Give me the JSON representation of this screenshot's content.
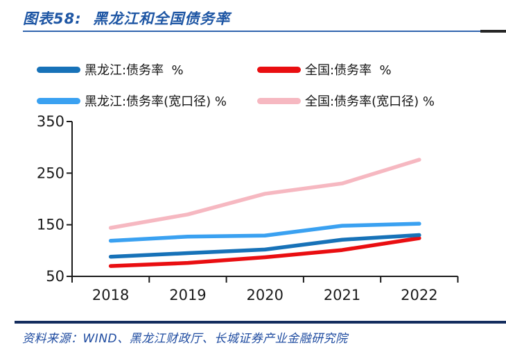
{
  "header": {
    "title": "图表58:  黑龙江和全国债务率"
  },
  "footer": {
    "source": "资料来源：WIND、黑龙江财政厅、长城证券产业金融研究院"
  },
  "colors": {
    "title_blue": "#1e56a4",
    "title_rule_blue": "#3064ae",
    "title_rule_end_dark": "#262626",
    "footer_rule_navy": "#142d5e",
    "axis_black": "#1a1a1a",
    "legend_text": "#141414"
  },
  "chart_data": {
    "type": "line",
    "title": "黑龙江和全国债务率",
    "categories": [
      "2018",
      "2019",
      "2020",
      "2021",
      "2022"
    ],
    "xlabel": "",
    "ylabel": "",
    "unit": "%",
    "ylim": [
      50,
      350
    ],
    "yticks": [
      350,
      250,
      150,
      50
    ],
    "grid": false,
    "legend_position": "top",
    "series": [
      {
        "name": "黑龙江:债务率  %",
        "color": "#1772b8",
        "values": [
          88,
          95,
          102,
          121,
          130
        ]
      },
      {
        "name": "全国:债务率  %",
        "color": "#e90e11",
        "values": [
          70,
          76,
          87,
          101,
          124
        ]
      },
      {
        "name": "黑龙江:债务率(宽口径) %",
        "color": "#3aa1f1",
        "values": [
          119,
          127,
          129,
          148,
          152
        ]
      },
      {
        "name": "全国:债务率(宽口径) %",
        "color": "#f6b8c1",
        "values": [
          144,
          170,
          210,
          230,
          276
        ]
      }
    ]
  }
}
